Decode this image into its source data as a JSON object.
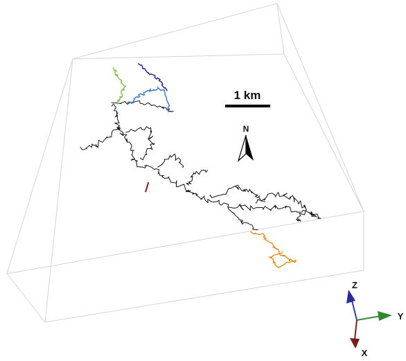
{
  "scale_bar": {
    "label": "1 km"
  },
  "north_arrow": {
    "label": "N"
  },
  "axes": {
    "z": "Z",
    "y": "Y",
    "x": "X"
  }
}
